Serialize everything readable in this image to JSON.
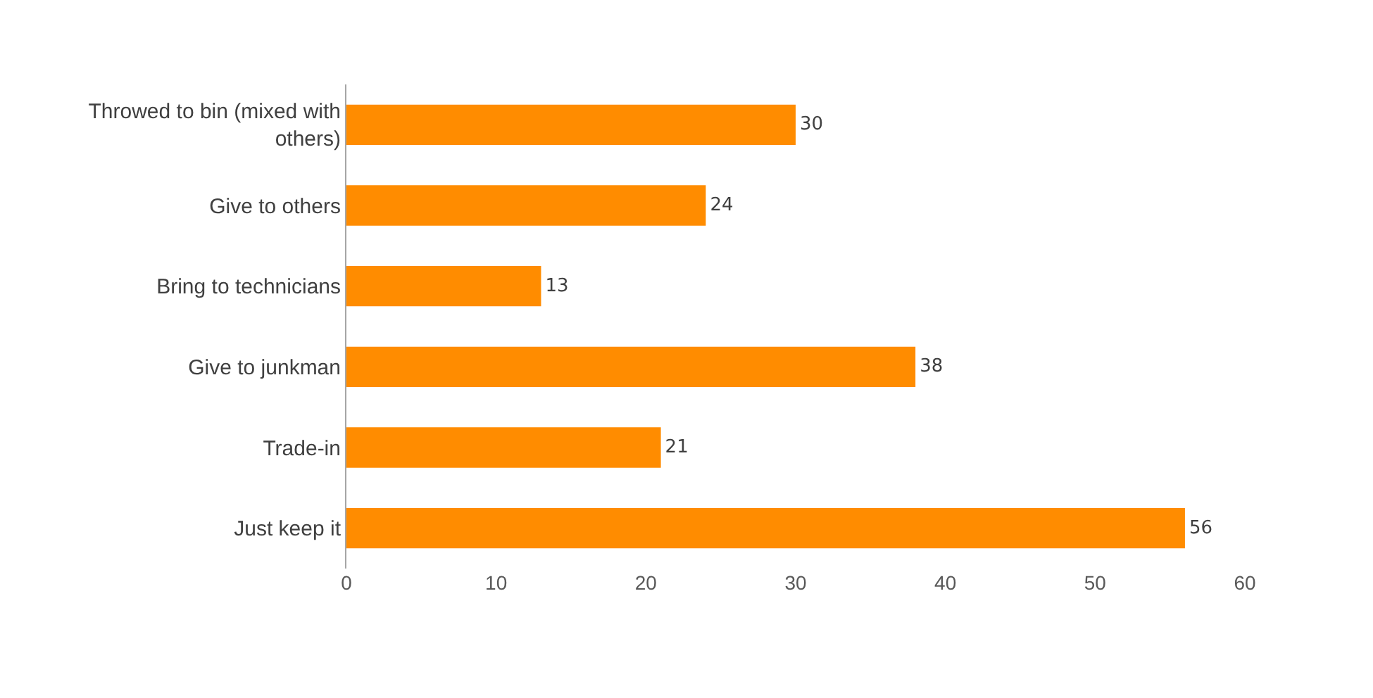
{
  "chart_data": {
    "type": "bar",
    "orientation": "horizontal",
    "categories": [
      "Throwed to bin (mixed with others)",
      "Give to others",
      "Bring to technicians",
      "Give to junkman",
      "Trade-in",
      "Just keep it"
    ],
    "values": [
      30,
      24,
      13,
      38,
      21,
      56
    ],
    "color": "#ff8c00",
    "xlim": [
      0,
      60
    ],
    "xticks": [
      0,
      10,
      20,
      30,
      40,
      50,
      60
    ],
    "grid": false,
    "legend": false,
    "data_labels": true
  }
}
